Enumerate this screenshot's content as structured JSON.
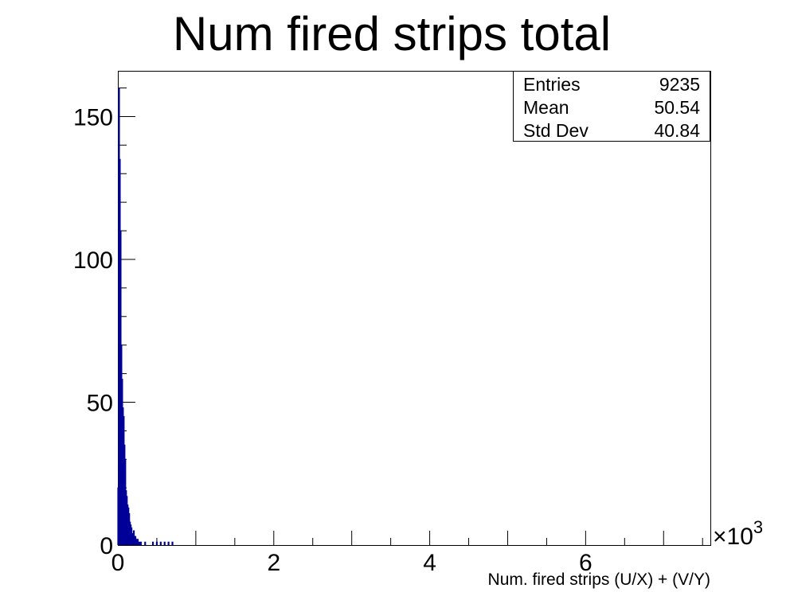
{
  "chart_data": {
    "type": "histogram",
    "title": "Num fired strips total",
    "xlabel": "Num. fired strips (U/X) + (V/Y)",
    "ylabel": "",
    "x_multiplier_label": "×10",
    "x_multiplier_exponent": "3",
    "xlim": [
      0,
      7.6
    ],
    "ylim": [
      0,
      166
    ],
    "x_ticks": [
      {
        "value": 0,
        "label": "0"
      },
      {
        "value": 2,
        "label": "2"
      },
      {
        "value": 4,
        "label": "4"
      },
      {
        "value": 6,
        "label": "6"
      }
    ],
    "y_ticks": [
      {
        "value": 0,
        "label": "0"
      },
      {
        "value": 50,
        "label": "50"
      },
      {
        "value": 100,
        "label": "100"
      },
      {
        "value": 150,
        "label": "150"
      }
    ],
    "line_color": "#000099",
    "x": [
      0.005,
      0.015,
      0.025,
      0.035,
      0.045,
      0.055,
      0.065,
      0.075,
      0.085,
      0.095,
      0.105,
      0.115,
      0.125,
      0.135,
      0.145,
      0.155,
      0.165,
      0.175,
      0.185,
      0.195,
      0.205,
      0.215,
      0.225,
      0.235,
      0.245,
      0.255,
      0.265,
      0.275,
      0.285,
      0.295,
      0.35,
      0.45,
      0.5,
      0.55,
      0.6,
      0.65,
      0.7
    ],
    "values": [
      20,
      160,
      135,
      110,
      70,
      58,
      48,
      45,
      35,
      30,
      19,
      17,
      14,
      13,
      11,
      8,
      7,
      6,
      4,
      3,
      5,
      2,
      3,
      2,
      1,
      2,
      1,
      1,
      1,
      1,
      1,
      1,
      1,
      1,
      1,
      1,
      1
    ]
  },
  "stats_box": {
    "rows": [
      {
        "label": "Entries",
        "value": "9235"
      },
      {
        "label": "Mean",
        "value": "50.54"
      },
      {
        "label": "Std Dev",
        "value": "40.84"
      }
    ]
  }
}
